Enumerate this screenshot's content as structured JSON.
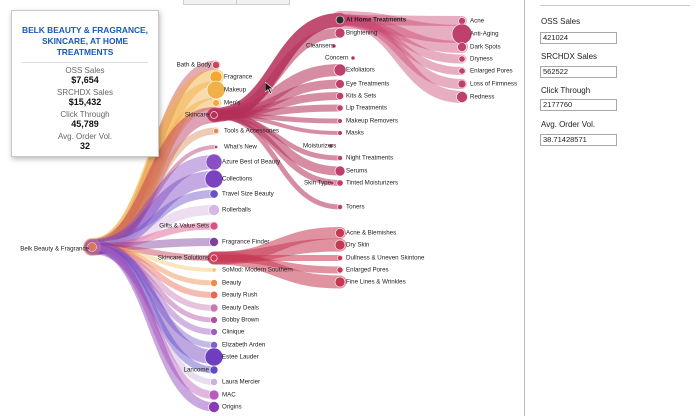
{
  "tooltip": {
    "title": "BELK BEAUTY & FRAGRANCE, SKINCARE, AT HOME TREATMENTS",
    "rows": [
      {
        "label": "OSS Sales",
        "value": "$7,654"
      },
      {
        "label": "SRCHDX Sales",
        "value": "$15,432"
      },
      {
        "label": "Click Through",
        "value": "45,789"
      },
      {
        "label": "Avg. Order Vol.",
        "value": "32"
      }
    ]
  },
  "panel": {
    "fields": [
      {
        "label": "OSS Sales",
        "value": "421024"
      },
      {
        "label": "SRCHDX Sales",
        "value": "562522"
      },
      {
        "label": "Click Through",
        "value": "2177760"
      },
      {
        "label": "Avg. Order Vol.",
        "value": "38.71428571"
      }
    ]
  },
  "chart_data": {
    "type": "tree",
    "root": "Belk Beauty & Fragrance",
    "categories": [
      {
        "name": "Bath & Body",
        "color": "#c14a5f"
      },
      {
        "name": "Fragrance",
        "color": "#f5a830"
      },
      {
        "name": "Makeup",
        "color": "#f0b14a"
      },
      {
        "name": "Men's",
        "color": "#f7a83e"
      },
      {
        "name": "Skincare",
        "color": "#b52f5a",
        "expanded": true
      },
      {
        "name": "Tools & Accessories",
        "color": "#d88c5b"
      },
      {
        "name": "What's New",
        "color": "#b43a6f"
      },
      {
        "name": "Azure Best of Beauty",
        "color": "#8a4fc4"
      },
      {
        "name": "Collections",
        "color": "#7a43c0"
      },
      {
        "name": "Travel Size Beauty",
        "color": "#6a4fc8"
      },
      {
        "name": "Rollerballs",
        "color": "#d7b6e3"
      },
      {
        "name": "Gifts & Value Sets",
        "color": "#dd4f87"
      },
      {
        "name": "Fragrance Finder",
        "color": "#7f3f9a"
      },
      {
        "name": "Skincare Solutions",
        "color": "#c63954",
        "expanded": true
      },
      {
        "name": "SoMod: Modern Southern",
        "color": "#f4c66a"
      },
      {
        "name": "Beauty",
        "color": "#f08a4a"
      },
      {
        "name": "Beauty Rush",
        "color": "#e9694f"
      },
      {
        "name": "Beauty Deals",
        "color": "#c57bb2"
      },
      {
        "name": "Bobby Brown",
        "color": "#b24fa4"
      },
      {
        "name": "Clinique",
        "color": "#9c5cc0"
      },
      {
        "name": "Elizabeth Arden",
        "color": "#7c62cc"
      },
      {
        "name": "Estee Lauder",
        "color": "#6e3ebf"
      },
      {
        "name": "Lancome",
        "color": "#5c4ac8"
      },
      {
        "name": "Laura Mercier",
        "color": "#c9b2dd"
      },
      {
        "name": "MAC",
        "color": "#b85cbd"
      },
      {
        "name": "Origins",
        "color": "#8a3cb6"
      }
    ],
    "skincare_groups": [
      "Cleansers",
      "Concern",
      "Moisturizers",
      "Skin Type"
    ],
    "skincare_children": [
      {
        "name": "At Home Treatments",
        "highlight": true,
        "children": [
          "Acne",
          "Anti-Aging",
          "Dark Spots",
          "Dryness",
          "Enlarged Pores",
          "Loss of Firmness",
          "Redness"
        ]
      },
      {
        "name": "Brightening"
      },
      {
        "name": "Exfoliators"
      },
      {
        "name": "Eye Treatments"
      },
      {
        "name": "Kits & Sets"
      },
      {
        "name": "Lip Treatments"
      },
      {
        "name": "Makeup Removers"
      },
      {
        "name": "Masks"
      },
      {
        "name": "Night Treatments"
      },
      {
        "name": "Serums"
      },
      {
        "name": "Tinted Moisturizers"
      },
      {
        "name": "Toners"
      }
    ],
    "solutions_children": [
      "Acne & Blemishes",
      "Dry Skin",
      "Dullness & Uneven Skintone",
      "Enlarged Pores",
      "Fine Lines & Wrinkles"
    ]
  }
}
